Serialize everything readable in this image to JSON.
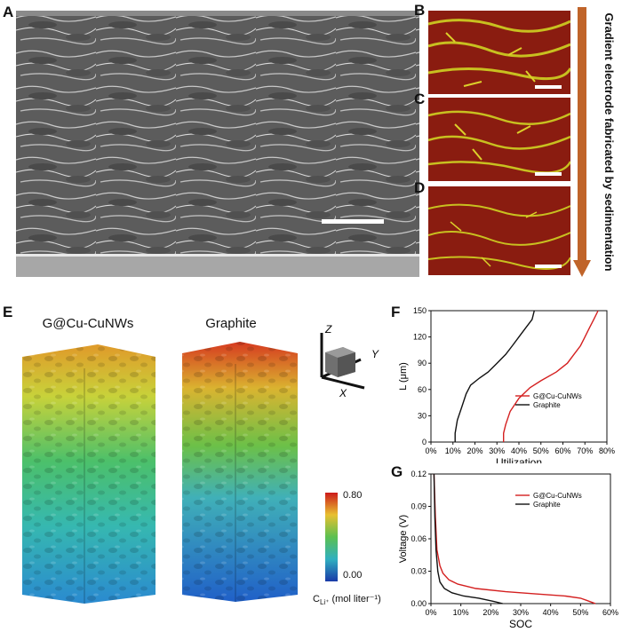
{
  "panels": {
    "a": "A",
    "b": "B",
    "c": "C",
    "d": "D",
    "e": "E",
    "f": "F",
    "g": "G"
  },
  "gradient_label": "Gradient electrode fabricated by sedimentation",
  "colors": {
    "arrow": "#c0642a",
    "map_bg": "#8a1c10",
    "map_pore": "#c8c020",
    "red_series": "#d42020",
    "black_series": "#111111"
  },
  "panel_e": {
    "left_title": "G@Cu-CuNWs",
    "right_title": "Graphite",
    "axes": {
      "z": "Z",
      "y": "Y",
      "x": "X"
    },
    "colorbar": {
      "max": "0.80",
      "min": "0.00",
      "unit": "C",
      "unit_sub": "Li⁺",
      "unit_rest": " (mol liter⁻¹)"
    }
  },
  "chart_data": [
    {
      "id": "F",
      "type": "line",
      "xlabel": "Utilization",
      "ylabel": "L (μm)",
      "xlim": [
        0,
        80
      ],
      "ylim": [
        0,
        150
      ],
      "x_ticks": [
        "0%",
        "10%",
        "20%",
        "30%",
        "40%",
        "50%",
        "60%",
        "70%",
        "80%"
      ],
      "y_ticks": [
        "0",
        "30",
        "60",
        "90",
        "120",
        "150"
      ],
      "series": [
        {
          "name": "G@Cu-CuNWs",
          "color": "#d42020",
          "points": [
            [
              33,
              0
            ],
            [
              33,
              10
            ],
            [
              34,
              20
            ],
            [
              36,
              35
            ],
            [
              40,
              50
            ],
            [
              45,
              62
            ],
            [
              50,
              70
            ],
            [
              57,
              80
            ],
            [
              62,
              90
            ],
            [
              65,
              100
            ],
            [
              68,
              110
            ],
            [
              70,
              120
            ],
            [
              72,
              130
            ],
            [
              74,
              140
            ],
            [
              76,
              150
            ]
          ]
        },
        {
          "name": "Graphite",
          "color": "#111111",
          "points": [
            [
              11,
              0
            ],
            [
              11,
              10
            ],
            [
              12,
              25
            ],
            [
              14,
              40
            ],
            [
              16,
              55
            ],
            [
              18,
              65
            ],
            [
              22,
              73
            ],
            [
              26,
              80
            ],
            [
              30,
              90
            ],
            [
              34,
              100
            ],
            [
              37,
              110
            ],
            [
              40,
              120
            ],
            [
              43,
              130
            ],
            [
              46,
              140
            ],
            [
              47,
              150
            ]
          ]
        }
      ],
      "legend": "center-right"
    },
    {
      "id": "G",
      "type": "line",
      "xlabel": "SOC",
      "ylabel": "Voltage (V)",
      "xlim": [
        0,
        60
      ],
      "ylim": [
        0,
        0.12
      ],
      "x_ticks": [
        "0%",
        "10%",
        "20%",
        "30%",
        "40%",
        "50%",
        "60%"
      ],
      "y_ticks": [
        "0.00",
        "0.03",
        "0.06",
        "0.09",
        "0.12"
      ],
      "series": [
        {
          "name": "G@Cu-CuNWs",
          "color": "#d42020",
          "points": [
            [
              1,
              0.12
            ],
            [
              1.5,
              0.08
            ],
            [
              2,
              0.05
            ],
            [
              3,
              0.035
            ],
            [
              4,
              0.028
            ],
            [
              6,
              0.022
            ],
            [
              9,
              0.018
            ],
            [
              15,
              0.014
            ],
            [
              25,
              0.011
            ],
            [
              35,
              0.009
            ],
            [
              45,
              0.007
            ],
            [
              50,
              0.005
            ],
            [
              52,
              0.003
            ],
            [
              54,
              0.001
            ],
            [
              55,
              0
            ]
          ]
        },
        {
          "name": "Graphite",
          "color": "#111111",
          "points": [
            [
              1,
              0.12
            ],
            [
              1.3,
              0.08
            ],
            [
              1.7,
              0.05
            ],
            [
              2.3,
              0.03
            ],
            [
              3,
              0.02
            ],
            [
              4.5,
              0.014
            ],
            [
              7,
              0.01
            ],
            [
              11,
              0.007
            ],
            [
              16,
              0.005
            ],
            [
              21,
              0.002
            ],
            [
              24,
              0
            ]
          ]
        }
      ],
      "legend": "top-right"
    }
  ]
}
